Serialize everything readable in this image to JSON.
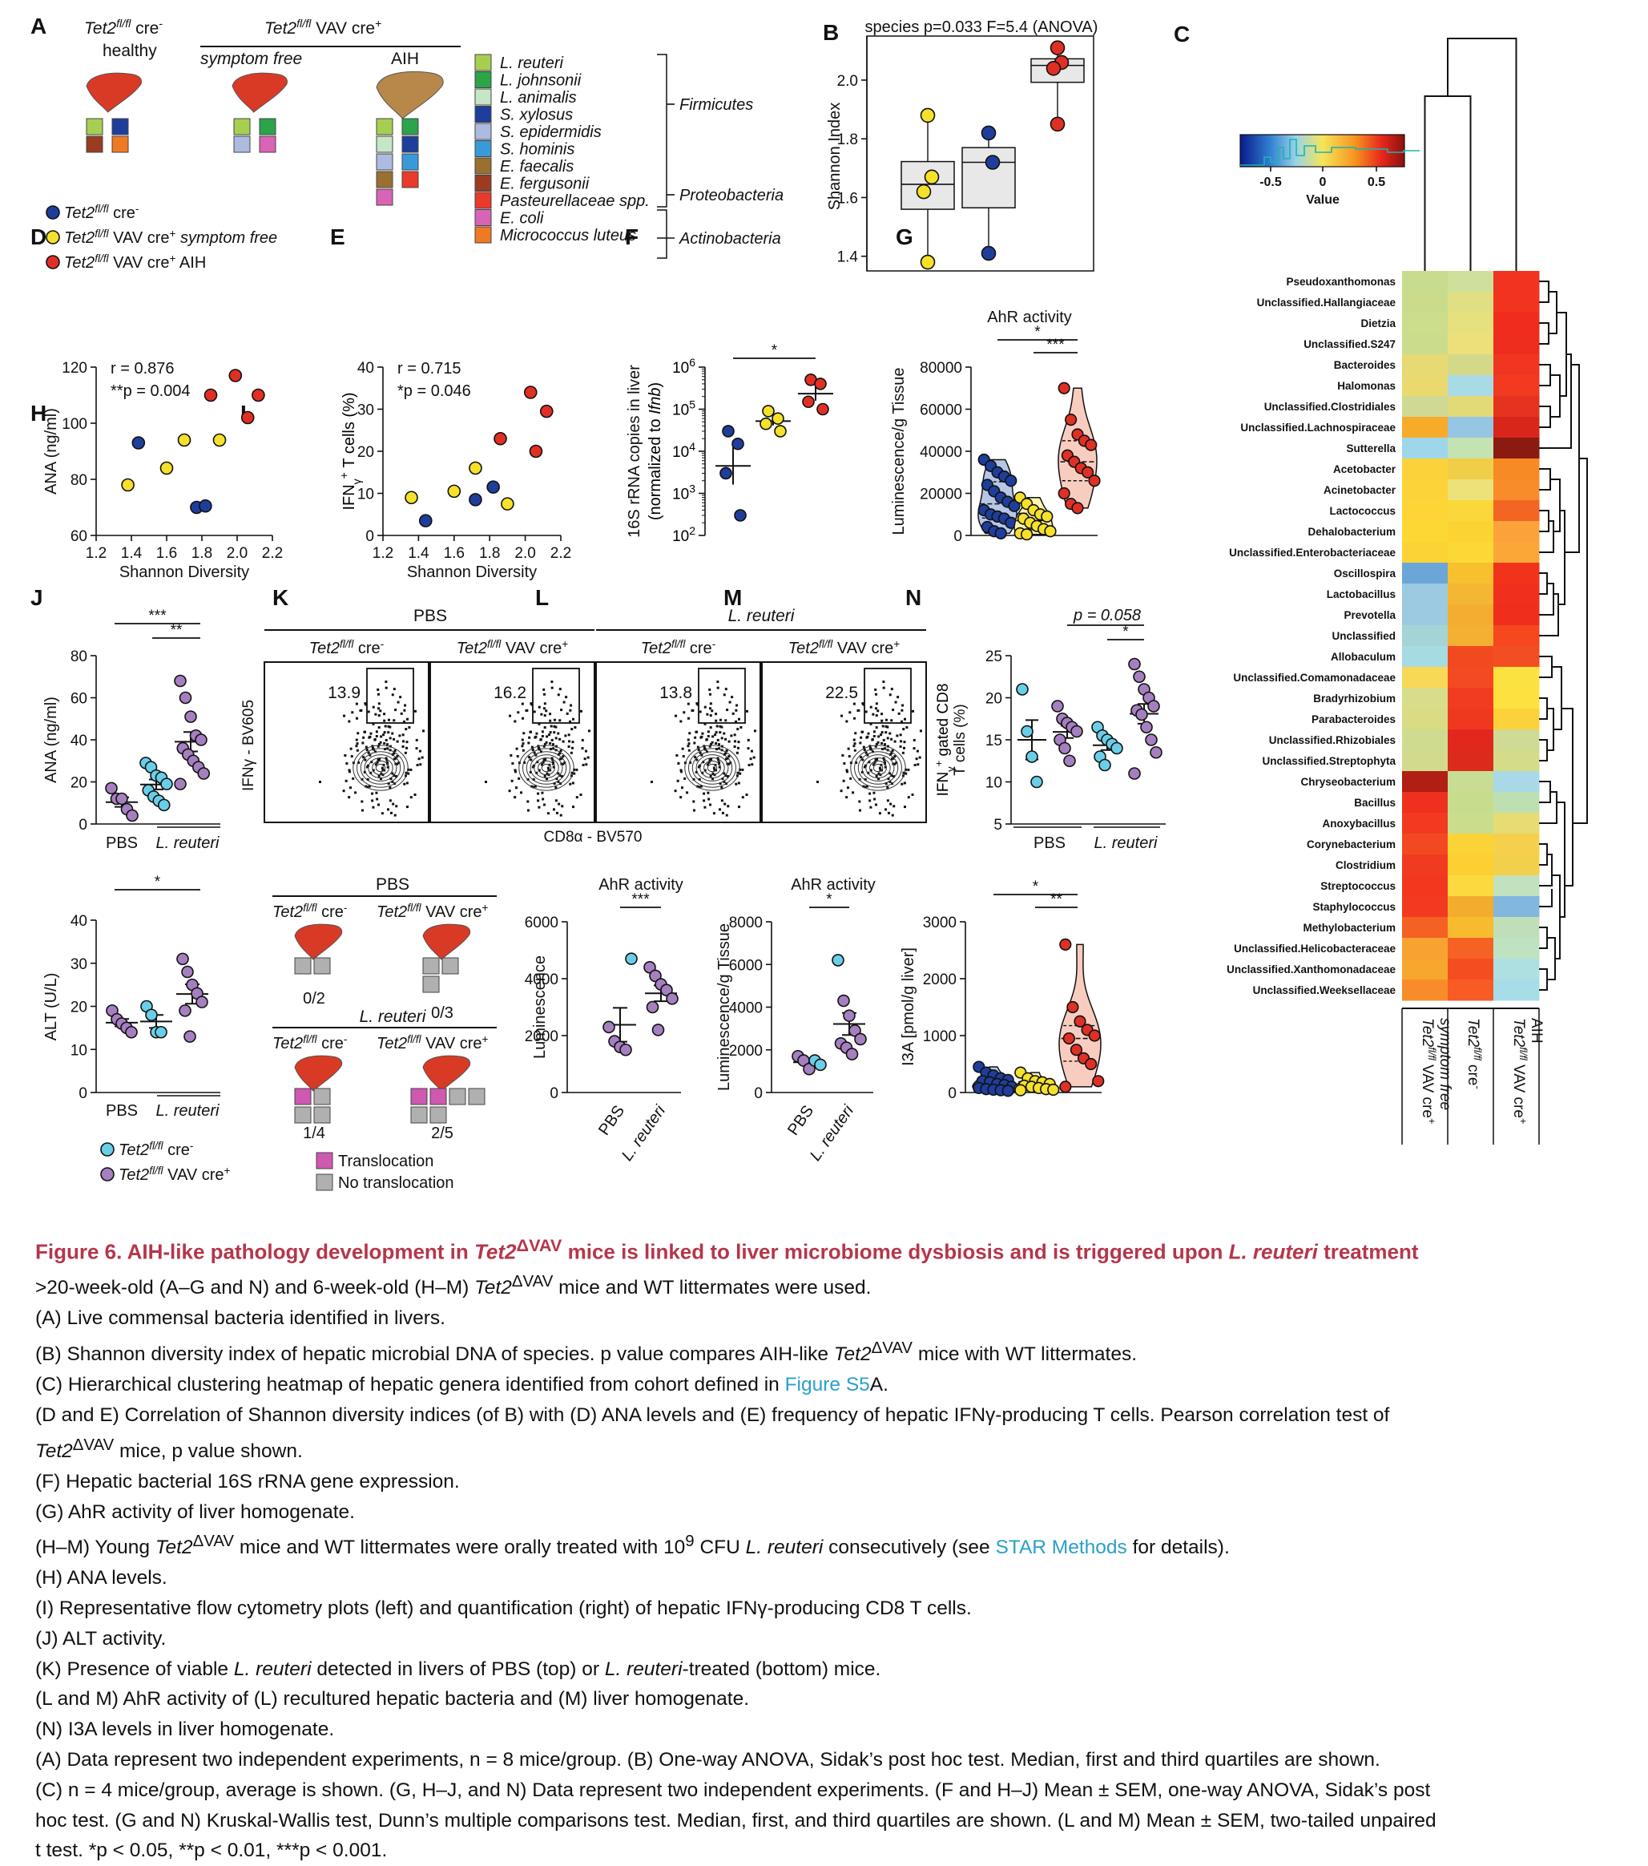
{
  "panel_letters": [
    "A",
    "B",
    "C",
    "D",
    "E",
    "F",
    "G",
    "H",
    "I",
    "J",
    "K",
    "L",
    "M",
    "N"
  ],
  "panelA": {
    "col1": {
      "genotype": "Tet2",
      "sup": "fl/fl",
      "suffix": " cre",
      "suffix_sup": "-",
      "state": "healthy"
    },
    "col2_header": {
      "genotype": "Tet2",
      "sup": "fl/fl",
      "suffix": " VAV cre",
      "suffix_sup": "+"
    },
    "col2": {
      "state": "symptom free"
    },
    "col3": {
      "state": "AIH"
    },
    "legend": [
      {
        "label": "L. reuteri",
        "color": "#a6cf52"
      },
      {
        "label": "L. johnsonii",
        "color": "#2ca44a"
      },
      {
        "label": "L. animalis",
        "color": "#c6e6c4"
      },
      {
        "label": "S. xylosus",
        "color": "#1f3e9c"
      },
      {
        "label": "S. epidermidis",
        "color": "#adbbe0"
      },
      {
        "label": "S. hominis",
        "color": "#3a9ad9"
      },
      {
        "label": "E. faecalis",
        "color": "#9a7030"
      },
      {
        "label": "E. fergusonii",
        "color": "#9b3b22"
      },
      {
        "label": "Pasteurellaceae spp.",
        "color": "#ea3a2a"
      },
      {
        "label": "E. coli",
        "color": "#d964b5"
      },
      {
        "label": "Micrococcus luteus",
        "color": "#f07a24"
      }
    ],
    "phyla": [
      "Firmicutes",
      "Proteobacteria",
      "Actinobacteria"
    ],
    "groups": [
      {
        "genotype": "Tet2",
        "sup": "fl/fl",
        "suffix": " cre",
        "suffix_sup": "-",
        "state": "",
        "color": "#1f3e9c"
      },
      {
        "genotype": "Tet2",
        "sup": "fl/fl",
        "suffix": " VAV cre",
        "suffix_sup": "+",
        "state": " symptom free",
        "color": "#f5e12a"
      },
      {
        "genotype": "Tet2",
        "sup": "fl/fl",
        "suffix": " VAV cre",
        "suffix_sup": "+",
        "state": " AIH",
        "color": "#e03025"
      }
    ]
  },
  "panelB": {
    "title": "species p=0.033 F=5.4 (ANOVA)",
    "ylabel": "Shannon Index",
    "yticks": [
      "1.4",
      "1.6",
      "1.8",
      "2.0"
    ]
  },
  "panelC": {
    "legend_title": "Value",
    "legend_ticks": [
      "-0.5",
      "0",
      "0.5"
    ],
    "genera": [
      "Pseudoxanthomonas",
      "Unclassified.Hallangiaceae",
      "Dietzia",
      "Unclassified.S247",
      "Bacteroides",
      "Halomonas",
      "Unclassified.Clostridiales",
      "Unclassified.Lachnospiraceae",
      "Sutterella",
      "Acetobacter",
      "Acinetobacter",
      "Lactococcus",
      "Dehalobacterium",
      "Unclassified.Enterobacteriaceae",
      "Oscillospira",
      "Lactobacillus",
      "Prevotella",
      "Unclassified",
      "Allobaculum",
      "Unclassified.Comamonadaceae",
      "Bradyrhizobium",
      "Parabacteroides",
      "Unclassified.Rhizobiales",
      "Unclassified.Streptophyta",
      "Chryseobacterium",
      "Bacillus",
      "Anoxybacillus",
      "Corynebacterium",
      "Clostridium",
      "Streptococcus",
      "Staphylococcus",
      "Methylobacterium",
      "Unclassified.Helicobacteraceae",
      "Unclassified.Xanthomonadaceae",
      "Unclassified.Weeksellaceae"
    ],
    "columns": [
      {
        "genotype": "Tet2",
        "sup": "fl/fl",
        "suffix": " VAV cre",
        "suffix_sup": "+",
        "state": "symptom free"
      },
      {
        "genotype": "Tet2",
        "sup": "fl/fl",
        "suffix": " cre",
        "suffix_sup": "-",
        "state": ""
      },
      {
        "genotype": "Tet2",
        "sup": "fl/fl",
        "suffix": " VAV cre",
        "suffix_sup": "+",
        "state": "AIH"
      }
    ]
  },
  "panelD": {
    "stat1": "r = 0.876",
    "stat2": "**p = 0.004",
    "ylabel": "ANA (ng/ml)",
    "xlabel": "Shannon Diversity",
    "xticks": [
      "1.2",
      "1.4",
      "1.6",
      "1.8",
      "2.0",
      "2.2"
    ],
    "yticks": [
      "60",
      "80",
      "100",
      "120"
    ]
  },
  "panelE": {
    "stat1": "r = 0.715",
    "stat2": "*p = 0.046",
    "ylabel_pre": "IFN",
    "ylabel_sub": "γ",
    "ylabel_sup": "+",
    "ylabel_post": " T cells (%)",
    "xlabel": "Shannon Diversity",
    "xticks": [
      "1.2",
      "1.4",
      "1.6",
      "1.8",
      "2.0",
      "2.2"
    ],
    "yticks": [
      "0",
      "10",
      "20",
      "30",
      "40"
    ]
  },
  "panelF": {
    "ylabel1": "16S rRNA copies in liver",
    "ylabel2": "(normalized to ",
    "ylabel2_it": "Ifnb",
    "ylabel2_end": ")",
    "star": "*"
  },
  "panelG": {
    "title": "AhR activity",
    "ylabel": "Luminescence/g Tissue",
    "yticks": [
      "0",
      "20000",
      "40000",
      "60000",
      "80000"
    ],
    "stars": [
      "*",
      "***"
    ]
  },
  "panelH": {
    "ylabel": "ANA (ng/ml)",
    "yticks": [
      "0",
      "20",
      "40",
      "60",
      "80"
    ],
    "stars": [
      "***",
      "**"
    ],
    "x1": "PBS",
    "x2": "L. reuteri"
  },
  "panelI": {
    "groups": [
      "PBS",
      "L. reuteri"
    ],
    "plots": [
      {
        "genotype": "Tet2",
        "sup": "fl/fl",
        "suffix": " cre",
        "suffix_sup": "-",
        "pct": "13.9"
      },
      {
        "genotype": "Tet2",
        "sup": "fl/fl",
        "suffix": " VAV cre",
        "suffix_sup": "+",
        "pct": "16.2"
      },
      {
        "genotype": "Tet2",
        "sup": "fl/fl",
        "suffix": " cre",
        "suffix_sup": "-",
        "pct": "13.8"
      },
      {
        "genotype": "Tet2",
        "sup": "fl/fl",
        "suffix": " VAV cre",
        "suffix_sup": "+",
        "pct": "22.5"
      }
    ],
    "ylabel": "IFNγ - BV605",
    "xlabel": "CD8α - BV570",
    "quant": {
      "pval": "p = 0.058",
      "star": "*",
      "ylabel1": "gated CD8",
      "ylabel2": "T cells (%)",
      "yticks": [
        "5",
        "10",
        "15",
        "20",
        "25"
      ],
      "x1": "PBS",
      "x2": "L. reuteri"
    }
  },
  "panelJ": {
    "ylabel": "ALT (U/L)",
    "yticks": [
      "0",
      "10",
      "20",
      "30",
      "40"
    ],
    "star": "*",
    "x1": "PBS",
    "x2": "L. reuteri",
    "legend": [
      {
        "genotype": "Tet2",
        "sup": "fl/fl",
        "suffix": " cre",
        "suffix_sup": "-",
        "color": "#69cfe8"
      },
      {
        "genotype": "Tet2",
        "sup": "fl/fl",
        "suffix": " VAV cre",
        "suffix_sup": "+",
        "color": "#a57fbf"
      }
    ]
  },
  "panelK": {
    "top": "PBS",
    "bottom": "L. reuteri",
    "ratios": [
      "0/2",
      "0/3",
      "1/4",
      "2/5"
    ],
    "geno1": {
      "genotype": "Tet2",
      "sup": "fl/fl",
      "suffix": " cre",
      "suffix_sup": "-"
    },
    "geno2": {
      "genotype": "Tet2",
      "sup": "fl/fl",
      "suffix": " VAV cre",
      "suffix_sup": "+"
    },
    "legend": [
      "Translocation",
      "No translocation"
    ]
  },
  "panelL": {
    "title": "AhR activity",
    "ylabel": "Luminescence",
    "yticks": [
      "0",
      "2000",
      "4000",
      "6000"
    ],
    "star": "***",
    "x1": "PBS",
    "x2": "L. reuteri"
  },
  "panelM": {
    "title": "AhR activity",
    "ylabel": "Luminescence/g Tissue",
    "yticks": [
      "0",
      "2000",
      "4000",
      "6000",
      "8000"
    ],
    "star": "*",
    "x1": "PBS",
    "x2": "L. reuteri"
  },
  "panelN": {
    "ylabel": "I3A [pmol/g liver]",
    "yticks": [
      "0",
      "1000",
      "2000",
      "3000"
    ],
    "stars": [
      "*",
      "**"
    ]
  },
  "caption": {
    "title_pre": "Figure 6.  AIH-like pathology development in ",
    "title_mid": " mice is linked to liver microbiome dysbiosis and is triggered upon ",
    "title_it2": "L. reuteri",
    "title_end": " treatment",
    "lines": [
      ">20-week-old (A–G and N) and 6-week-old (H–M) Tet2ΔVAV mice and WT littermates were used.",
      "(A) Live commensal bacteria identified in livers.",
      "(B) Shannon diversity index of hepatic microbial DNA of species. p value compares AIH-like Tet2ΔVAV mice with WT littermates.",
      "(C) Hierarchical clustering heatmap of hepatic genera identified from cohort defined in Figure S5A.",
      "(D and E) Correlation of Shannon diversity indices (of B) with (D) ANA levels and (E) frequency of hepatic IFNγ-producing T cells. Pearson correlation test of",
      "Tet2ΔVAV mice, p value shown.",
      "(F) Hepatic bacterial 16S rRNA gene expression.",
      "(G) AhR activity of liver homogenate.",
      "(H–M) Young Tet2ΔVAV mice and WT littermates were orally treated with 10⁹ CFU L. reuteri consecutively (see STAR Methods for details).",
      "(H) ANA levels.",
      "(I) Representative flow cytometry plots (left) and quantification (right) of hepatic IFNγ-producing CD8 T cells.",
      "(J) ALT activity.",
      "(K) Presence of viable L. reuteri detected in livers of PBS (top) or L. reuteri-treated (bottom) mice.",
      "(L and M) AhR activity of (L) recultured hepatic bacteria and (M) liver homogenate.",
      "(N) I3A levels in liver homogenate.",
      "(A) Data represent two independent experiments, n = 8 mice/group. (B) One-way ANOVA, Sidak’s post hoc test. Median, first and third quartiles are shown.",
      "(C) n = 4 mice/group, average is shown. (G, H–J, and N) Data represent two independent experiments. (F and H–J) Mean ± SEM, one-way ANOVA, Sidak’s post",
      "hoc test. (G and N) Kruskal-Wallis test, Dunn’s multiple comparisons test. Median, first, and third quartiles are shown. (L and M) Mean ± SEM, two-tailed unpaired",
      "t test. *p < 0.05, **p < 0.01, ***p < 0.001."
    ]
  },
  "chart_data": [
    {
      "panel": "B",
      "type": "box",
      "ylabel": "Shannon Index",
      "ylim": [
        1.35,
        2.15
      ],
      "series": [
        {
          "color": "#1f3e9c",
          "values": [
            1.82,
            1.72,
            1.41
          ]
        },
        {
          "color": "#f5e12a",
          "values": [
            1.88,
            1.67,
            1.62,
            1.38
          ]
        },
        {
          "color": "#e03025",
          "values": [
            2.11,
            2.06,
            2.04,
            1.85
          ]
        }
      ]
    },
    {
      "panel": "D",
      "type": "scatter",
      "xlabel": "Shannon Diversity",
      "ylabel": "ANA (ng/ml)",
      "xlim": [
        1.2,
        2.2
      ],
      "ylim": [
        60,
        120
      ],
      "series": [
        {
          "color": "#1f3e9c",
          "points": [
            [
              1.44,
              93
            ],
            [
              1.77,
              70
            ],
            [
              1.82,
              70.5
            ]
          ]
        },
        {
          "color": "#f5e12a",
          "points": [
            [
              1.38,
              78
            ],
            [
              1.6,
              84
            ],
            [
              1.7,
              94
            ],
            [
              1.9,
              94
            ]
          ]
        },
        {
          "color": "#e03025",
          "points": [
            [
              1.85,
              110
            ],
            [
              1.99,
              117
            ],
            [
              2.06,
              102
            ],
            [
              2.12,
              110
            ]
          ]
        }
      ]
    },
    {
      "panel": "E",
      "type": "scatter",
      "xlabel": "Shannon Diversity",
      "ylabel": "IFNγ+ T cells (%)",
      "xlim": [
        1.2,
        2.2
      ],
      "ylim": [
        0,
        40
      ],
      "series": [
        {
          "color": "#1f3e9c",
          "points": [
            [
              1.44,
              3.5
            ],
            [
              1.72,
              8.5
            ],
            [
              1.82,
              11.5
            ]
          ]
        },
        {
          "color": "#f5e12a",
          "points": [
            [
              1.36,
              9
            ],
            [
              1.6,
              10.5
            ],
            [
              1.72,
              16
            ],
            [
              1.9,
              7.5
            ]
          ]
        },
        {
          "color": "#e03025",
          "points": [
            [
              1.86,
              23
            ],
            [
              2.03,
              34
            ],
            [
              2.06,
              20
            ],
            [
              2.12,
              29.5
            ]
          ]
        }
      ]
    },
    {
      "panel": "F",
      "type": "dot",
      "ylabel": "16S rRNA copies in liver (normalized to Ifnb)",
      "yscale": "log10",
      "ylim": [
        100,
        1000000
      ],
      "series": [
        {
          "color": "#1f3e9c",
          "values": [
            30000,
            15000,
            3000,
            300
          ]
        },
        {
          "color": "#f5e12a",
          "values": [
            90000,
            60000,
            45000,
            30000
          ]
        },
        {
          "color": "#e03025",
          "values": [
            500000,
            400000,
            150000,
            100000
          ]
        }
      ]
    },
    {
      "panel": "G",
      "type": "violin",
      "ylabel": "Luminescence/g Tissue",
      "ylim": [
        0,
        80000
      ],
      "series": [
        {
          "color": "#1f3e9c",
          "values": [
            36000,
            33000,
            30000,
            28000,
            26000,
            24000,
            21000,
            18000,
            16000,
            14000,
            12000,
            10000,
            9000,
            8000,
            6000,
            4000,
            2000,
            1000
          ]
        },
        {
          "color": "#f5e12a",
          "values": [
            18000,
            15000,
            12000,
            10000,
            9000,
            8000,
            6000,
            4500,
            3000,
            2000,
            1000,
            500
          ]
        },
        {
          "color": "#e03025",
          "values": [
            70000,
            55000,
            48000,
            45000,
            43000,
            38000,
            35000,
            32000,
            30000,
            26000,
            20000,
            15000,
            13000
          ]
        }
      ]
    },
    {
      "panel": "H",
      "type": "dot",
      "ylabel": "ANA (ng/ml)",
      "ylim": [
        0,
        80
      ],
      "series": [
        {
          "color": "#a57fbf",
          "values": [
            17,
            12,
            12,
            7,
            4
          ]
        },
        {
          "color": "#69cfe8",
          "values": [
            29,
            27,
            23,
            22,
            19,
            16,
            13,
            11,
            9
          ]
        },
        {
          "color": "#a57fbf",
          "values": [
            68,
            60,
            51,
            42,
            40,
            36,
            33,
            30,
            27,
            24,
            19
          ]
        }
      ]
    },
    {
      "panel": "I",
      "type": "dot",
      "ylabel": "IFNγ+ gated CD8 T cells (%)",
      "ylim": [
        5,
        25
      ],
      "series": [
        {
          "color": "#69cfe8",
          "values": [
            21,
            16,
            13,
            10
          ]
        },
        {
          "color": "#a57fbf",
          "values": [
            19,
            17.5,
            17,
            16.5,
            16,
            15,
            14,
            12.5
          ]
        },
        {
          "color": "#69cfe8",
          "values": [
            16.5,
            15.5,
            15,
            14.5,
            14,
            13,
            12
          ]
        },
        {
          "color": "#a57fbf",
          "values": [
            24,
            22.5,
            21,
            20,
            19,
            18.5,
            18,
            16.5,
            15,
            13.5,
            11
          ]
        }
      ]
    },
    {
      "panel": "J",
      "type": "dot",
      "ylabel": "ALT (U/L)",
      "ylim": [
        0,
        40
      ],
      "series": [
        {
          "color": "#a57fbf",
          "values": [
            19,
            17,
            16,
            15,
            14
          ]
        },
        {
          "color": "#69cfe8",
          "values": [
            20,
            18,
            14,
            14
          ]
        },
        {
          "color": "#a57fbf",
          "values": [
            31,
            28,
            25,
            23,
            21,
            19,
            13
          ]
        }
      ]
    },
    {
      "panel": "L",
      "type": "dot",
      "ylabel": "Luminescence",
      "ylim": [
        0,
        6000
      ],
      "series": [
        {
          "color": "#a57fbf",
          "values": [
            2300,
            1800,
            1600,
            1500
          ]
        },
        {
          "color": "#69cfe8",
          "values": [
            4700
          ]
        },
        {
          "color": "#a57fbf",
          "values": [
            4400,
            4100,
            3800,
            3600,
            3300,
            3000,
            2200
          ]
        }
      ]
    },
    {
      "panel": "M",
      "type": "dot",
      "ylabel": "Luminescence/g Tissue",
      "ylim": [
        0,
        8000
      ],
      "series": [
        {
          "color": "#a57fbf",
          "values": [
            1700,
            1500,
            1100
          ]
        },
        {
          "color": "#69cfe8",
          "values": [
            1500,
            1300
          ]
        },
        {
          "color": "#69cfe8",
          "values": [
            6200
          ]
        },
        {
          "color": "#a57fbf",
          "values": [
            4300,
            3600,
            2900,
            2500,
            2300,
            2100,
            1800
          ]
        }
      ]
    },
    {
      "panel": "N",
      "type": "violin",
      "ylabel": "I3A [pmol/g liver]",
      "ylim": [
        0,
        3000
      ],
      "series": [
        {
          "color": "#1f3e9c",
          "values": [
            450,
            350,
            300,
            250,
            220,
            200,
            180,
            150,
            130,
            100,
            80,
            60,
            50,
            40,
            30
          ]
        },
        {
          "color": "#f5e12a",
          "values": [
            350,
            250,
            200,
            180,
            150,
            120,
            100,
            80,
            60,
            50,
            40
          ]
        },
        {
          "color": "#e03025",
          "values": [
            2600,
            1500,
            1250,
            1100,
            1000,
            950,
            750,
            600,
            500,
            200,
            100
          ]
        }
      ]
    }
  ]
}
